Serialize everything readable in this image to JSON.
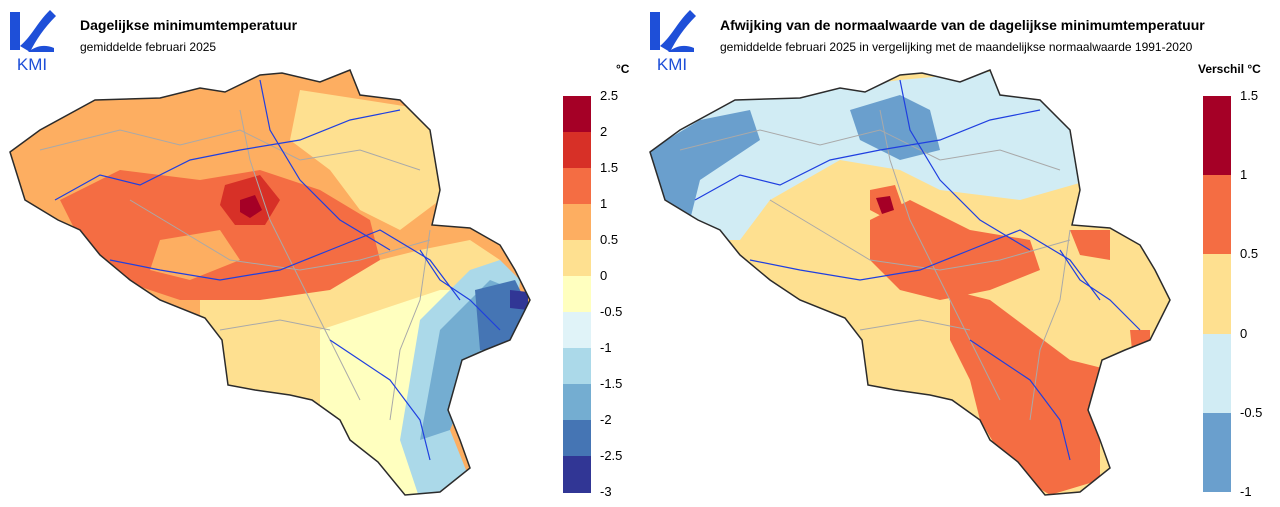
{
  "logo": {
    "text": "KMI",
    "color": "#1e4fd8"
  },
  "maps": [
    {
      "title": "Dagelijkse minimumtemperatuur",
      "subtitle": "gemiddelde februari 2025",
      "unit": "°C",
      "legend": {
        "ticks": [
          "2.5",
          "2",
          "1.5",
          "1",
          "0.5",
          "0",
          "-0.5",
          "-1",
          "-1.5",
          "-2",
          "-2.5",
          "-3"
        ],
        "colors": [
          "#a50026",
          "#d73027",
          "#f46d43",
          "#fdae61",
          "#fee090",
          "#ffffbf",
          "#e0f3f8",
          "#abd9e9",
          "#74add1",
          "#4575b4",
          "#313695"
        ]
      }
    },
    {
      "title": "Afwijking van de normaalwaarde van de dagelijkse minimumtemperatuur",
      "subtitle": "gemiddelde februari 2025 in vergelijking met de maandelijkse normaalwaarde 1991-2020",
      "unit": "Verschil °C",
      "legend": {
        "ticks": [
          "1.5",
          "1",
          "0.5",
          "0",
          "-0.5",
          "-1"
        ],
        "colors": [
          "#a50026",
          "#f46d43",
          "#fee090",
          "#d1ecf4",
          "#6a9fcd"
        ]
      }
    }
  ]
}
